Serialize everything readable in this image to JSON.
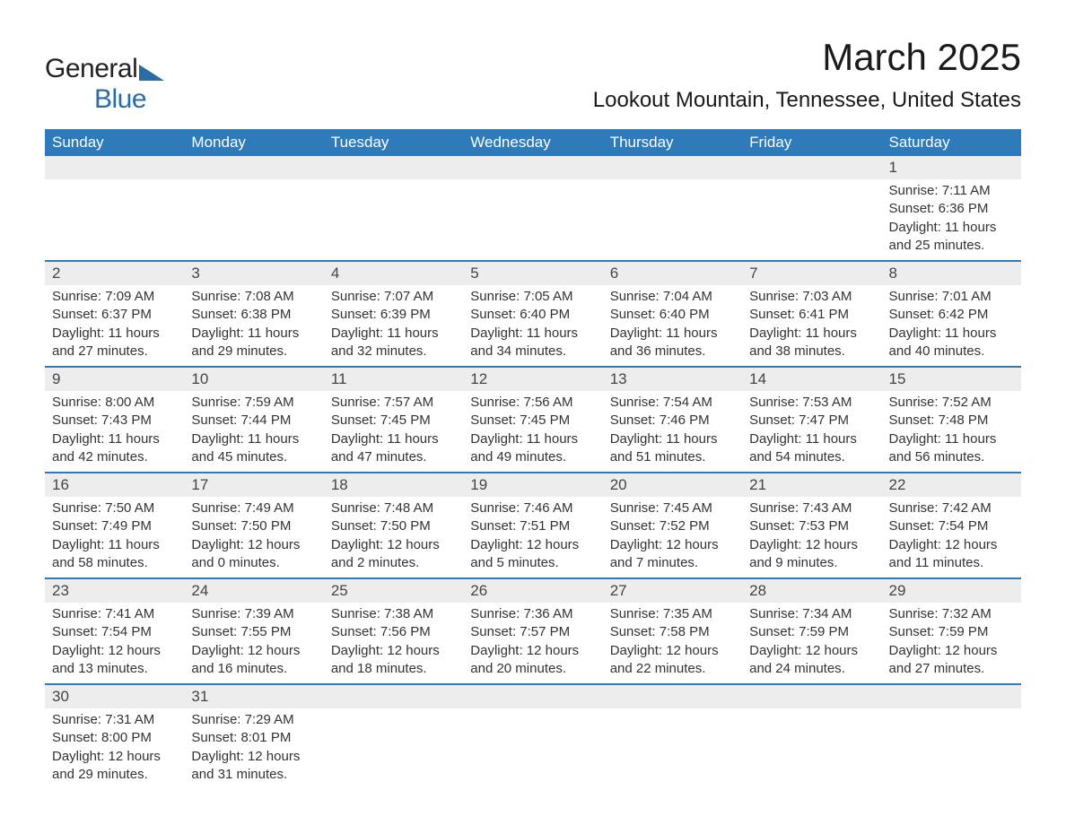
{
  "logo": {
    "general": "General",
    "blue": "Blue"
  },
  "title": "March 2025",
  "location": "Lookout Mountain, Tennessee, United States",
  "day_headers": [
    "Sunday",
    "Monday",
    "Tuesday",
    "Wednesday",
    "Thursday",
    "Friday",
    "Saturday"
  ],
  "colors": {
    "header_bg": "#2f7ab8",
    "header_text": "#ffffff",
    "daynum_bg": "#ededed",
    "row_border": "#2f7ab8",
    "text": "#333333",
    "logo_blue": "#2a6ca8"
  },
  "typography": {
    "title_fontsize": 42,
    "location_fontsize": 24,
    "header_fontsize": 17,
    "cell_fontsize": 15
  },
  "weeks": [
    [
      {
        "num": "",
        "sunrise": "",
        "sunset": "",
        "daylight": ""
      },
      {
        "num": "",
        "sunrise": "",
        "sunset": "",
        "daylight": ""
      },
      {
        "num": "",
        "sunrise": "",
        "sunset": "",
        "daylight": ""
      },
      {
        "num": "",
        "sunrise": "",
        "sunset": "",
        "daylight": ""
      },
      {
        "num": "",
        "sunrise": "",
        "sunset": "",
        "daylight": ""
      },
      {
        "num": "",
        "sunrise": "",
        "sunset": "",
        "daylight": ""
      },
      {
        "num": "1",
        "sunrise": "Sunrise: 7:11 AM",
        "sunset": "Sunset: 6:36 PM",
        "daylight": "Daylight: 11 hours and 25 minutes."
      }
    ],
    [
      {
        "num": "2",
        "sunrise": "Sunrise: 7:09 AM",
        "sunset": "Sunset: 6:37 PM",
        "daylight": "Daylight: 11 hours and 27 minutes."
      },
      {
        "num": "3",
        "sunrise": "Sunrise: 7:08 AM",
        "sunset": "Sunset: 6:38 PM",
        "daylight": "Daylight: 11 hours and 29 minutes."
      },
      {
        "num": "4",
        "sunrise": "Sunrise: 7:07 AM",
        "sunset": "Sunset: 6:39 PM",
        "daylight": "Daylight: 11 hours and 32 minutes."
      },
      {
        "num": "5",
        "sunrise": "Sunrise: 7:05 AM",
        "sunset": "Sunset: 6:40 PM",
        "daylight": "Daylight: 11 hours and 34 minutes."
      },
      {
        "num": "6",
        "sunrise": "Sunrise: 7:04 AM",
        "sunset": "Sunset: 6:40 PM",
        "daylight": "Daylight: 11 hours and 36 minutes."
      },
      {
        "num": "7",
        "sunrise": "Sunrise: 7:03 AM",
        "sunset": "Sunset: 6:41 PM",
        "daylight": "Daylight: 11 hours and 38 minutes."
      },
      {
        "num": "8",
        "sunrise": "Sunrise: 7:01 AM",
        "sunset": "Sunset: 6:42 PM",
        "daylight": "Daylight: 11 hours and 40 minutes."
      }
    ],
    [
      {
        "num": "9",
        "sunrise": "Sunrise: 8:00 AM",
        "sunset": "Sunset: 7:43 PM",
        "daylight": "Daylight: 11 hours and 42 minutes."
      },
      {
        "num": "10",
        "sunrise": "Sunrise: 7:59 AM",
        "sunset": "Sunset: 7:44 PM",
        "daylight": "Daylight: 11 hours and 45 minutes."
      },
      {
        "num": "11",
        "sunrise": "Sunrise: 7:57 AM",
        "sunset": "Sunset: 7:45 PM",
        "daylight": "Daylight: 11 hours and 47 minutes."
      },
      {
        "num": "12",
        "sunrise": "Sunrise: 7:56 AM",
        "sunset": "Sunset: 7:45 PM",
        "daylight": "Daylight: 11 hours and 49 minutes."
      },
      {
        "num": "13",
        "sunrise": "Sunrise: 7:54 AM",
        "sunset": "Sunset: 7:46 PM",
        "daylight": "Daylight: 11 hours and 51 minutes."
      },
      {
        "num": "14",
        "sunrise": "Sunrise: 7:53 AM",
        "sunset": "Sunset: 7:47 PM",
        "daylight": "Daylight: 11 hours and 54 minutes."
      },
      {
        "num": "15",
        "sunrise": "Sunrise: 7:52 AM",
        "sunset": "Sunset: 7:48 PM",
        "daylight": "Daylight: 11 hours and 56 minutes."
      }
    ],
    [
      {
        "num": "16",
        "sunrise": "Sunrise: 7:50 AM",
        "sunset": "Sunset: 7:49 PM",
        "daylight": "Daylight: 11 hours and 58 minutes."
      },
      {
        "num": "17",
        "sunrise": "Sunrise: 7:49 AM",
        "sunset": "Sunset: 7:50 PM",
        "daylight": "Daylight: 12 hours and 0 minutes."
      },
      {
        "num": "18",
        "sunrise": "Sunrise: 7:48 AM",
        "sunset": "Sunset: 7:50 PM",
        "daylight": "Daylight: 12 hours and 2 minutes."
      },
      {
        "num": "19",
        "sunrise": "Sunrise: 7:46 AM",
        "sunset": "Sunset: 7:51 PM",
        "daylight": "Daylight: 12 hours and 5 minutes."
      },
      {
        "num": "20",
        "sunrise": "Sunrise: 7:45 AM",
        "sunset": "Sunset: 7:52 PM",
        "daylight": "Daylight: 12 hours and 7 minutes."
      },
      {
        "num": "21",
        "sunrise": "Sunrise: 7:43 AM",
        "sunset": "Sunset: 7:53 PM",
        "daylight": "Daylight: 12 hours and 9 minutes."
      },
      {
        "num": "22",
        "sunrise": "Sunrise: 7:42 AM",
        "sunset": "Sunset: 7:54 PM",
        "daylight": "Daylight: 12 hours and 11 minutes."
      }
    ],
    [
      {
        "num": "23",
        "sunrise": "Sunrise: 7:41 AM",
        "sunset": "Sunset: 7:54 PM",
        "daylight": "Daylight: 12 hours and 13 minutes."
      },
      {
        "num": "24",
        "sunrise": "Sunrise: 7:39 AM",
        "sunset": "Sunset: 7:55 PM",
        "daylight": "Daylight: 12 hours and 16 minutes."
      },
      {
        "num": "25",
        "sunrise": "Sunrise: 7:38 AM",
        "sunset": "Sunset: 7:56 PM",
        "daylight": "Daylight: 12 hours and 18 minutes."
      },
      {
        "num": "26",
        "sunrise": "Sunrise: 7:36 AM",
        "sunset": "Sunset: 7:57 PM",
        "daylight": "Daylight: 12 hours and 20 minutes."
      },
      {
        "num": "27",
        "sunrise": "Sunrise: 7:35 AM",
        "sunset": "Sunset: 7:58 PM",
        "daylight": "Daylight: 12 hours and 22 minutes."
      },
      {
        "num": "28",
        "sunrise": "Sunrise: 7:34 AM",
        "sunset": "Sunset: 7:59 PM",
        "daylight": "Daylight: 12 hours and 24 minutes."
      },
      {
        "num": "29",
        "sunrise": "Sunrise: 7:32 AM",
        "sunset": "Sunset: 7:59 PM",
        "daylight": "Daylight: 12 hours and 27 minutes."
      }
    ],
    [
      {
        "num": "30",
        "sunrise": "Sunrise: 7:31 AM",
        "sunset": "Sunset: 8:00 PM",
        "daylight": "Daylight: 12 hours and 29 minutes."
      },
      {
        "num": "31",
        "sunrise": "Sunrise: 7:29 AM",
        "sunset": "Sunset: 8:01 PM",
        "daylight": "Daylight: 12 hours and 31 minutes."
      },
      {
        "num": "",
        "sunrise": "",
        "sunset": "",
        "daylight": ""
      },
      {
        "num": "",
        "sunrise": "",
        "sunset": "",
        "daylight": ""
      },
      {
        "num": "",
        "sunrise": "",
        "sunset": "",
        "daylight": ""
      },
      {
        "num": "",
        "sunrise": "",
        "sunset": "",
        "daylight": ""
      },
      {
        "num": "",
        "sunrise": "",
        "sunset": "",
        "daylight": ""
      }
    ]
  ]
}
